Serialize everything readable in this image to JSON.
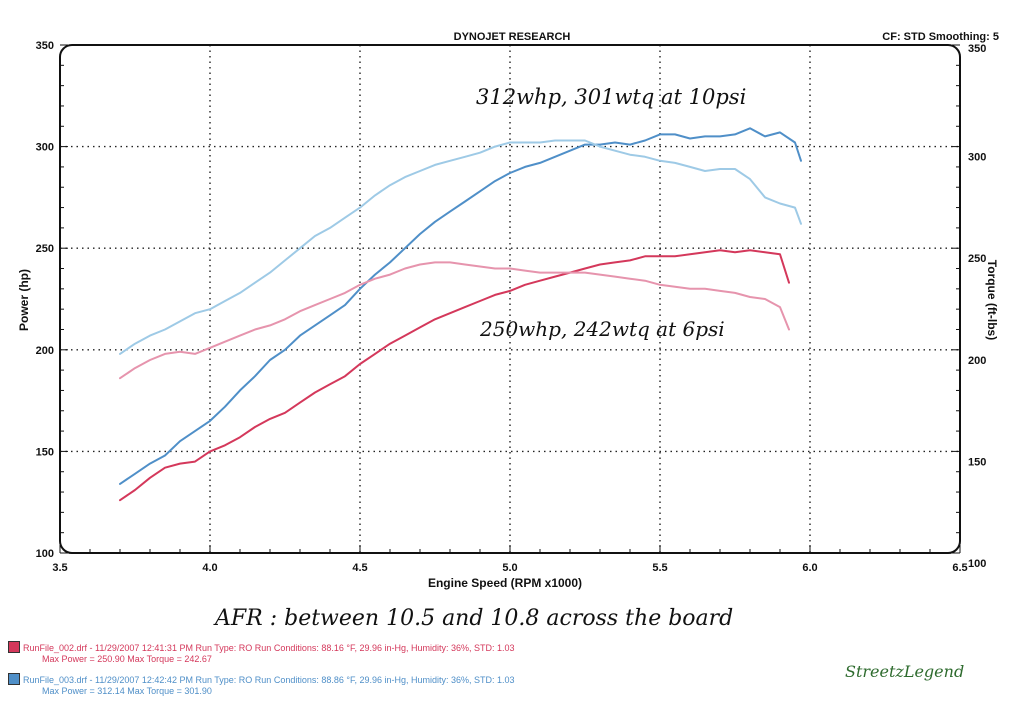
{
  "header": {
    "title": "DYNOJET RESEARCH",
    "right": "CF: STD  Smoothing: 5"
  },
  "annotations": {
    "high_boost": "312whp, 301wtq at 10psi",
    "low_boost": "250whp, 242wtq at 6psi",
    "afr": "AFR : between 10.5 and 10.8 across the board"
  },
  "legend": {
    "run1": {
      "color": "#d4385b",
      "line1": "RunFile_002.drf - 11/29/2007 12:41:31 PM  Run Type: RO  Run Conditions: 88.16 °F, 29.96 in-Hg,  Humidity: 36%, STD: 1.03",
      "line2": "Max Power = 250.90  Max Torque = 242.67"
    },
    "run2": {
      "color": "#4f8fc8",
      "line1": "RunFile_003.drf - 11/29/2007 12:42:42 PM  Run Type: RO  Run Conditions: 88.86 °F, 29.96 in-Hg,  Humidity: 36%, STD: 1.03",
      "line2": "Max Power = 312.14  Max Torque = 301.90"
    }
  },
  "watermark": "StreetzLegend",
  "chart_data": {
    "type": "line",
    "title": "DYNOJET RESEARCH",
    "xlabel": "Engine Speed (RPM x1000)",
    "ylabel": "Power (hp)",
    "y2label": "Torque (ft-lbs)",
    "xlim": [
      3.5,
      6.5
    ],
    "ylim": [
      100,
      350
    ],
    "y2lim": [
      100,
      350
    ],
    "x_ticks": [
      "3.5",
      "4.0",
      "4.5",
      "5.0",
      "5.5",
      "6.0",
      "6.5"
    ],
    "y_ticks": [
      "100",
      "150",
      "200",
      "250",
      "300",
      "350"
    ],
    "y2_ticks": [
      "100",
      "150",
      "200",
      "250",
      "300",
      "350"
    ],
    "grid": true,
    "series": [
      {
        "name": "RunFile_003.drf - Power",
        "color": "#4f8fc8",
        "axis": "left",
        "points": [
          [
            3.7,
            134
          ],
          [
            3.75,
            139
          ],
          [
            3.8,
            144
          ],
          [
            3.85,
            148
          ],
          [
            3.9,
            155
          ],
          [
            3.95,
            160
          ],
          [
            4.0,
            165
          ],
          [
            4.05,
            172
          ],
          [
            4.1,
            180
          ],
          [
            4.15,
            187
          ],
          [
            4.2,
            195
          ],
          [
            4.25,
            200
          ],
          [
            4.3,
            207
          ],
          [
            4.35,
            212
          ],
          [
            4.4,
            217
          ],
          [
            4.45,
            222
          ],
          [
            4.5,
            230
          ],
          [
            4.55,
            237
          ],
          [
            4.6,
            243
          ],
          [
            4.65,
            250
          ],
          [
            4.7,
            257
          ],
          [
            4.75,
            263
          ],
          [
            4.8,
            268
          ],
          [
            4.85,
            273
          ],
          [
            4.9,
            278
          ],
          [
            4.95,
            283
          ],
          [
            5.0,
            287
          ],
          [
            5.05,
            290
          ],
          [
            5.1,
            292
          ],
          [
            5.15,
            295
          ],
          [
            5.2,
            298
          ],
          [
            5.25,
            301
          ],
          [
            5.3,
            301
          ],
          [
            5.35,
            302
          ],
          [
            5.4,
            301
          ],
          [
            5.45,
            303
          ],
          [
            5.5,
            306
          ],
          [
            5.55,
            306
          ],
          [
            5.6,
            304
          ],
          [
            5.65,
            305
          ],
          [
            5.7,
            305
          ],
          [
            5.75,
            306
          ],
          [
            5.8,
            309
          ],
          [
            5.85,
            305
          ],
          [
            5.9,
            307
          ],
          [
            5.95,
            302
          ],
          [
            5.97,
            293
          ]
        ]
      },
      {
        "name": "RunFile_003.drf - Torque",
        "color": "#9ecae6",
        "axis": "right",
        "points": [
          [
            3.7,
            198
          ],
          [
            3.75,
            203
          ],
          [
            3.8,
            207
          ],
          [
            3.85,
            210
          ],
          [
            3.9,
            214
          ],
          [
            3.95,
            218
          ],
          [
            4.0,
            220
          ],
          [
            4.05,
            224
          ],
          [
            4.1,
            228
          ],
          [
            4.15,
            233
          ],
          [
            4.2,
            238
          ],
          [
            4.25,
            244
          ],
          [
            4.3,
            250
          ],
          [
            4.35,
            256
          ],
          [
            4.4,
            260
          ],
          [
            4.45,
            265
          ],
          [
            4.5,
            270
          ],
          [
            4.55,
            276
          ],
          [
            4.6,
            281
          ],
          [
            4.65,
            285
          ],
          [
            4.7,
            288
          ],
          [
            4.75,
            291
          ],
          [
            4.8,
            293
          ],
          [
            4.85,
            295
          ],
          [
            4.9,
            297
          ],
          [
            4.95,
            300
          ],
          [
            5.0,
            302
          ],
          [
            5.05,
            302
          ],
          [
            5.1,
            302
          ],
          [
            5.15,
            303
          ],
          [
            5.2,
            303
          ],
          [
            5.25,
            303
          ],
          [
            5.3,
            300
          ],
          [
            5.35,
            298
          ],
          [
            5.4,
            296
          ],
          [
            5.45,
            295
          ],
          [
            5.5,
            293
          ],
          [
            5.55,
            292
          ],
          [
            5.6,
            290
          ],
          [
            5.65,
            288
          ],
          [
            5.7,
            289
          ],
          [
            5.75,
            289
          ],
          [
            5.8,
            284
          ],
          [
            5.85,
            275
          ],
          [
            5.9,
            272
          ],
          [
            5.95,
            270
          ],
          [
            5.97,
            262
          ]
        ]
      },
      {
        "name": "RunFile_002.drf - Power",
        "color": "#d4385b",
        "axis": "left",
        "points": [
          [
            3.7,
            126
          ],
          [
            3.75,
            131
          ],
          [
            3.8,
            137
          ],
          [
            3.85,
            142
          ],
          [
            3.9,
            144
          ],
          [
            3.95,
            145
          ],
          [
            4.0,
            150
          ],
          [
            4.05,
            153
          ],
          [
            4.1,
            157
          ],
          [
            4.15,
            162
          ],
          [
            4.2,
            166
          ],
          [
            4.25,
            169
          ],
          [
            4.3,
            174
          ],
          [
            4.35,
            179
          ],
          [
            4.4,
            183
          ],
          [
            4.45,
            187
          ],
          [
            4.5,
            193
          ],
          [
            4.55,
            198
          ],
          [
            4.6,
            203
          ],
          [
            4.65,
            207
          ],
          [
            4.7,
            211
          ],
          [
            4.75,
            215
          ],
          [
            4.8,
            218
          ],
          [
            4.85,
            221
          ],
          [
            4.9,
            224
          ],
          [
            4.95,
            227
          ],
          [
            5.0,
            229
          ],
          [
            5.05,
            232
          ],
          [
            5.1,
            234
          ],
          [
            5.15,
            236
          ],
          [
            5.2,
            238
          ],
          [
            5.25,
            240
          ],
          [
            5.3,
            242
          ],
          [
            5.35,
            243
          ],
          [
            5.4,
            244
          ],
          [
            5.45,
            246
          ],
          [
            5.5,
            246
          ],
          [
            5.55,
            246
          ],
          [
            5.6,
            247
          ],
          [
            5.65,
            248
          ],
          [
            5.7,
            249
          ],
          [
            5.75,
            248
          ],
          [
            5.8,
            249
          ],
          [
            5.85,
            248
          ],
          [
            5.9,
            247
          ],
          [
            5.93,
            233
          ]
        ]
      },
      {
        "name": "RunFile_002.drf - Torque",
        "color": "#e694ad",
        "axis": "right",
        "points": [
          [
            3.7,
            186
          ],
          [
            3.75,
            191
          ],
          [
            3.8,
            195
          ],
          [
            3.85,
            198
          ],
          [
            3.9,
            199
          ],
          [
            3.95,
            198
          ],
          [
            4.0,
            201
          ],
          [
            4.05,
            204
          ],
          [
            4.1,
            207
          ],
          [
            4.15,
            210
          ],
          [
            4.2,
            212
          ],
          [
            4.25,
            215
          ],
          [
            4.3,
            219
          ],
          [
            4.35,
            222
          ],
          [
            4.4,
            225
          ],
          [
            4.45,
            228
          ],
          [
            4.5,
            232
          ],
          [
            4.55,
            235
          ],
          [
            4.6,
            237
          ],
          [
            4.65,
            240
          ],
          [
            4.7,
            242
          ],
          [
            4.75,
            243
          ],
          [
            4.8,
            243
          ],
          [
            4.85,
            242
          ],
          [
            4.9,
            241
          ],
          [
            4.95,
            240
          ],
          [
            5.0,
            240
          ],
          [
            5.05,
            239
          ],
          [
            5.1,
            238
          ],
          [
            5.15,
            238
          ],
          [
            5.2,
            238
          ],
          [
            5.25,
            238
          ],
          [
            5.3,
            237
          ],
          [
            5.35,
            236
          ],
          [
            5.4,
            235
          ],
          [
            5.45,
            234
          ],
          [
            5.5,
            232
          ],
          [
            5.55,
            231
          ],
          [
            5.6,
            230
          ],
          [
            5.65,
            230
          ],
          [
            5.7,
            229
          ],
          [
            5.75,
            228
          ],
          [
            5.8,
            226
          ],
          [
            5.85,
            225
          ],
          [
            5.9,
            221
          ],
          [
            5.93,
            210
          ]
        ]
      }
    ]
  }
}
